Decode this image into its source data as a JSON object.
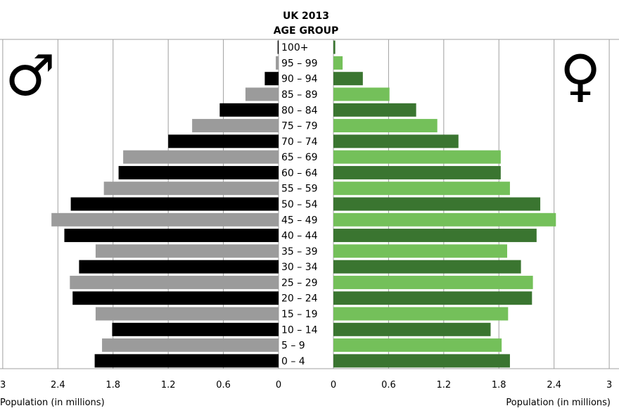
{
  "chart_data": {
    "type": "bar",
    "title": "UK 2013",
    "subtitle": "AGE GROUP",
    "categories": [
      "0 – 4",
      "5 – 9",
      "10 – 14",
      "15 – 19",
      "20 – 24",
      "25 – 29",
      "30 – 34",
      "35 – 39",
      "40 – 44",
      "45 – 49",
      "50 – 54",
      "55 – 59",
      "60 – 64",
      "65 – 69",
      "70 – 74",
      "75 – 79",
      "80 – 84",
      "85 – 89",
      "90 – 94",
      "95 – 99",
      "100+"
    ],
    "series": [
      {
        "name": "♂",
        "values": [
          2.0,
          1.92,
          1.81,
          1.99,
          2.24,
          2.27,
          2.17,
          1.99,
          2.33,
          2.47,
          2.26,
          1.9,
          1.74,
          1.69,
          1.2,
          0.94,
          0.64,
          0.36,
          0.15,
          0.03,
          0.01
        ]
      },
      {
        "name": "♀",
        "values": [
          1.92,
          1.83,
          1.71,
          1.9,
          2.16,
          2.17,
          2.04,
          1.89,
          2.21,
          2.42,
          2.25,
          1.92,
          1.82,
          1.82,
          1.36,
          1.13,
          0.9,
          0.61,
          0.32,
          0.1,
          0.02
        ]
      }
    ],
    "xticks": [
      "3",
      "2.4",
      "1.8",
      "1.2",
      "0.6",
      "0",
      "0",
      "0.6",
      "1.2",
      "1.8",
      "2.4",
      "3"
    ],
    "xlabel_left": "Population (in millions)",
    "xlabel_right": "Population (in millions)",
    "xlim": [
      0,
      3
    ],
    "grid": true,
    "colors": {
      "male_dark": "#000000",
      "male_light": "#9b9b9b",
      "female_dark": "#3a7530",
      "female_light": "#74c05a"
    }
  }
}
